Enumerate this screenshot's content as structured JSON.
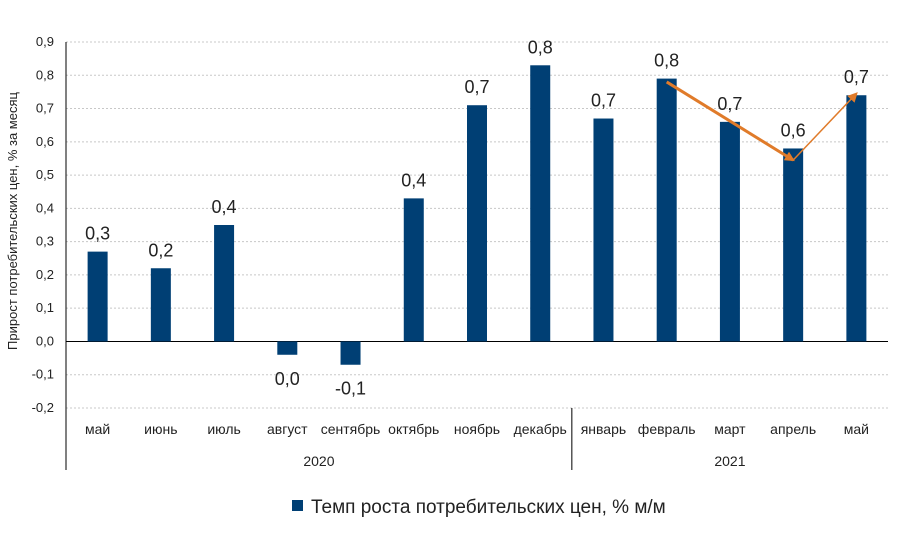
{
  "chart_data": {
    "type": "bar",
    "ylabel": "Прирост потребительских цен, % за месяц",
    "ylim": [
      -0.2,
      0.9
    ],
    "yticks": [
      "-0,2",
      "-0,1",
      "0,0",
      "0,1",
      "0,2",
      "0,3",
      "0,4",
      "0,5",
      "0,6",
      "0,7",
      "0,8",
      "0,9"
    ],
    "ytick_values": [
      -0.2,
      -0.1,
      0.0,
      0.1,
      0.2,
      0.3,
      0.4,
      0.5,
      0.6,
      0.7,
      0.8,
      0.9
    ],
    "grid": true,
    "legend_position": "bottom",
    "categories": [
      "май",
      "июнь",
      "июль",
      "август",
      "сентябрь",
      "октябрь",
      "ноябрь",
      "декабрь",
      "январь",
      "февраль",
      "март",
      "апрель",
      "май"
    ],
    "groups": [
      {
        "label": "2020",
        "count": 8
      },
      {
        "label": "2021",
        "count": 5
      }
    ],
    "series": [
      {
        "name": "Темп роста потребительских цен, % м/м",
        "color": "#003f74",
        "values": [
          0.27,
          0.22,
          0.35,
          -0.04,
          -0.07,
          0.43,
          0.71,
          0.83,
          0.67,
          0.79,
          0.66,
          0.58,
          0.74
        ],
        "labels": [
          "0,3",
          "0,2",
          "0,4",
          "0,0",
          "-0,1",
          "0,4",
          "0,7",
          "0,8",
          "0,7",
          "0,8",
          "0,7",
          "0,6",
          "0,7"
        ]
      }
    ],
    "annotations": [
      {
        "type": "arrow",
        "from_category": 9,
        "from_value": 0.78,
        "to_category": 11,
        "to_value": 0.545,
        "color": "#e07b2a",
        "weight": "thick"
      },
      {
        "type": "arrow",
        "from_category": 11,
        "from_value": 0.545,
        "to_category": 12,
        "to_value": 0.745,
        "color": "#e07b2a",
        "weight": "thin"
      }
    ]
  }
}
